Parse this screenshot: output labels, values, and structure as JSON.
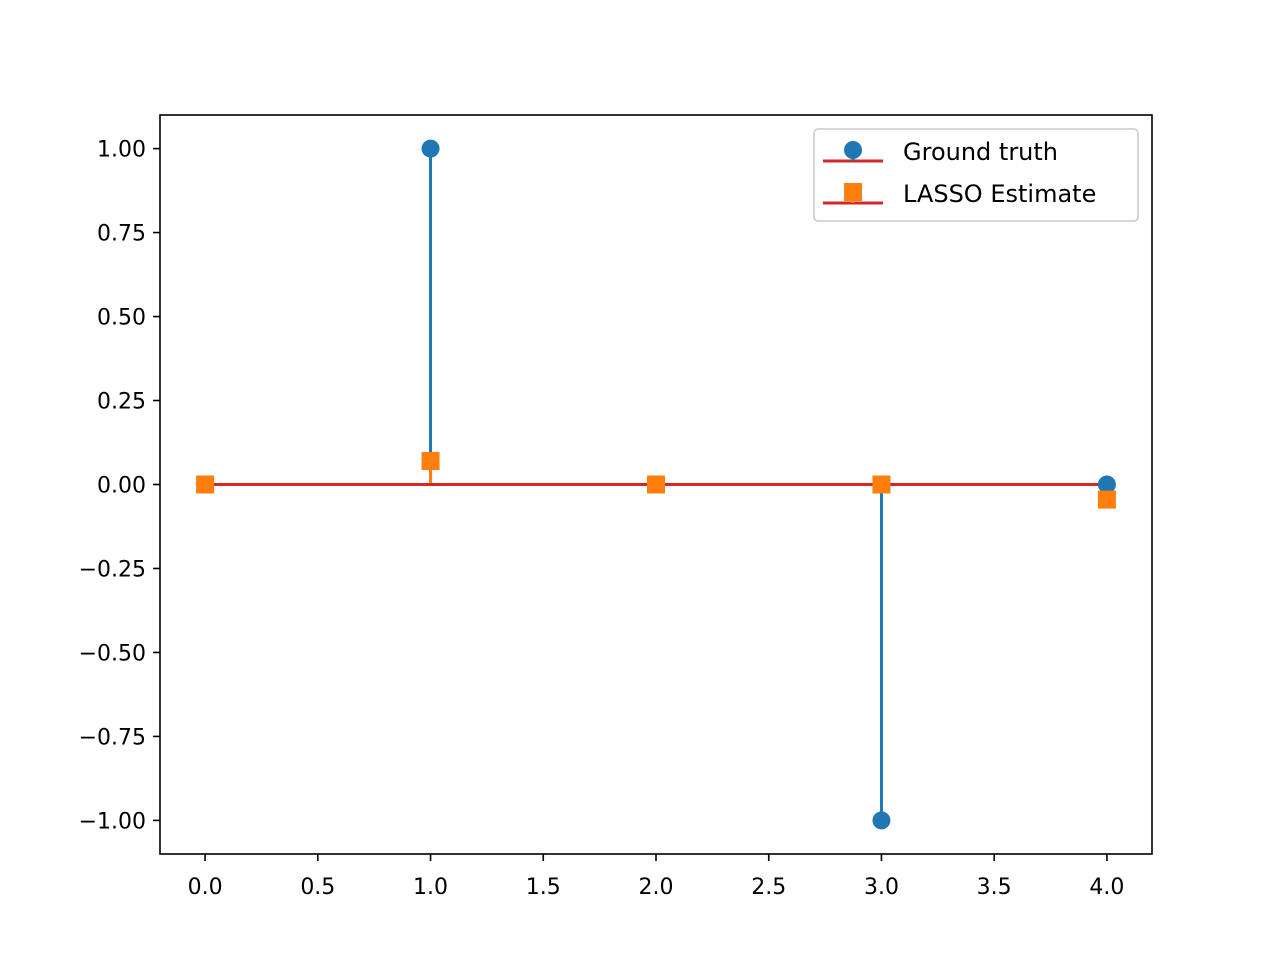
{
  "chart_data": {
    "type": "scatter",
    "subtype": "stem",
    "title": "",
    "xlabel": "",
    "ylabel": "",
    "xlim": [
      -0.2,
      4.2
    ],
    "ylim": [
      -1.1,
      1.1
    ],
    "grid": false,
    "x_ticks": [
      0.0,
      0.5,
      1.0,
      1.5,
      2.0,
      2.5,
      3.0,
      3.5,
      4.0
    ],
    "x_tick_labels": [
      "0.0",
      "0.5",
      "1.0",
      "1.5",
      "2.0",
      "2.5",
      "3.0",
      "3.5",
      "4.0"
    ],
    "y_ticks": [
      1.0,
      0.75,
      0.5,
      0.25,
      0.0,
      -0.25,
      -0.5,
      -0.75,
      -1.0
    ],
    "y_tick_labels": [
      "1.00",
      "0.75",
      "0.50",
      "0.25",
      "0.00",
      "−0.25",
      "−0.50",
      "−0.75",
      "−1.00"
    ],
    "x": [
      0,
      1,
      2,
      3,
      4
    ],
    "baseline": {
      "value": 0.0,
      "color": "#d62728"
    },
    "series": [
      {
        "name": "Ground truth",
        "values": [
          0.0,
          1.0,
          0.0,
          -1.0,
          0.0
        ],
        "marker": "circle",
        "color": "#1f77b4"
      },
      {
        "name": "LASSO Estimate",
        "values": [
          0.0,
          0.07,
          0.0,
          0.0,
          -0.045
        ],
        "marker": "square",
        "color": "#ff7f0e"
      }
    ],
    "legend": {
      "position": "top-right"
    }
  }
}
